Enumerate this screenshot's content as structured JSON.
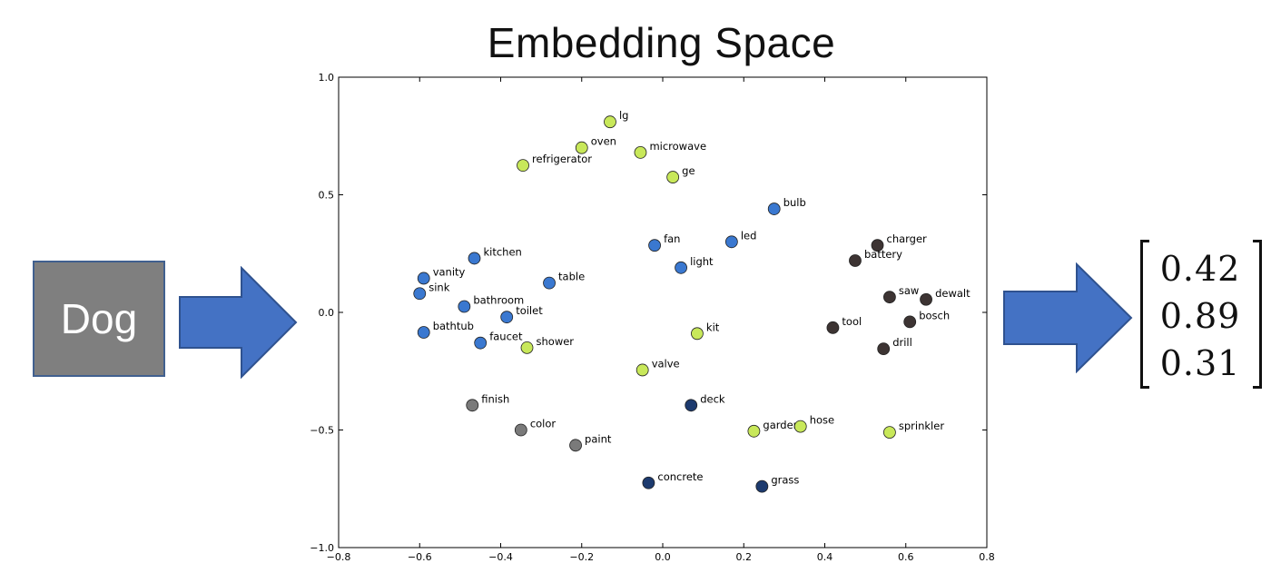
{
  "title": "Embedding Space",
  "input": {
    "label": "Dog"
  },
  "vector": {
    "values": [
      "0.42",
      "0.89",
      "0.31"
    ]
  },
  "colors": {
    "box_fill": "#7f7f7f",
    "box_border": "#41608f",
    "arrow": "#4472c4",
    "arrow_border": "#2f528f"
  },
  "chart_data": {
    "type": "scatter",
    "title": "",
    "xlabel": "",
    "ylabel": "",
    "xlim": [
      -0.8,
      0.8
    ],
    "ylim": [
      -1.0,
      1.0
    ],
    "xticks": [
      "−0.8",
      "−0.6",
      "−0.4",
      "−0.2",
      "0.0",
      "0.2",
      "0.4",
      "0.6",
      "0.8"
    ],
    "xtick_values": [
      -0.8,
      -0.6,
      -0.4,
      -0.2,
      0.0,
      0.2,
      0.4,
      0.6,
      0.8
    ],
    "yticks": [
      "1.0",
      "0.5",
      "0.0",
      "−0.5",
      "−1.0"
    ],
    "ytick_values": [
      1.0,
      0.5,
      0.0,
      -0.5,
      -1.0
    ],
    "grid": false,
    "points": [
      {
        "label": "lg",
        "x": -0.13,
        "y": 0.81,
        "color": "#c8e85a"
      },
      {
        "label": "oven",
        "x": -0.2,
        "y": 0.7,
        "color": "#c8e85a"
      },
      {
        "label": "microwave",
        "x": -0.055,
        "y": 0.68,
        "color": "#c8e85a"
      },
      {
        "label": "refrigerator",
        "x": -0.345,
        "y": 0.625,
        "color": "#c8e85a"
      },
      {
        "label": "ge",
        "x": 0.025,
        "y": 0.575,
        "color": "#c8e85a"
      },
      {
        "label": "bulb",
        "x": 0.275,
        "y": 0.44,
        "color": "#3a78d0"
      },
      {
        "label": "fan",
        "x": -0.02,
        "y": 0.285,
        "color": "#3a78d0"
      },
      {
        "label": "led",
        "x": 0.17,
        "y": 0.3,
        "color": "#3a78d0"
      },
      {
        "label": "light",
        "x": 0.045,
        "y": 0.19,
        "color": "#3a78d0"
      },
      {
        "label": "kitchen",
        "x": -0.465,
        "y": 0.23,
        "color": "#3a78d0"
      },
      {
        "label": "vanity",
        "x": -0.59,
        "y": 0.145,
        "color": "#3a78d0"
      },
      {
        "label": "sink",
        "x": -0.6,
        "y": 0.08,
        "color": "#3a78d0"
      },
      {
        "label": "table",
        "x": -0.28,
        "y": 0.125,
        "color": "#3a78d0"
      },
      {
        "label": "bathroom",
        "x": -0.49,
        "y": 0.025,
        "color": "#3a78d0"
      },
      {
        "label": "toilet",
        "x": -0.385,
        "y": -0.02,
        "color": "#3a78d0"
      },
      {
        "label": "bathtub",
        "x": -0.59,
        "y": -0.085,
        "color": "#3a78d0"
      },
      {
        "label": "faucet",
        "x": -0.45,
        "y": -0.13,
        "color": "#3a78d0"
      },
      {
        "label": "shower",
        "x": -0.335,
        "y": -0.15,
        "color": "#c8e85a"
      },
      {
        "label": "kit",
        "x": 0.085,
        "y": -0.09,
        "color": "#c8e85a"
      },
      {
        "label": "valve",
        "x": -0.05,
        "y": -0.245,
        "color": "#c8e85a"
      },
      {
        "label": "charger",
        "x": 0.53,
        "y": 0.285,
        "color": "#3d3433"
      },
      {
        "label": "battery",
        "x": 0.475,
        "y": 0.22,
        "color": "#3d3433"
      },
      {
        "label": "saw",
        "x": 0.56,
        "y": 0.065,
        "color": "#3d3433"
      },
      {
        "label": "dewalt",
        "x": 0.65,
        "y": 0.055,
        "color": "#3d3433"
      },
      {
        "label": "tool",
        "x": 0.42,
        "y": -0.065,
        "color": "#3d3433"
      },
      {
        "label": "bosch",
        "x": 0.61,
        "y": -0.04,
        "color": "#3d3433"
      },
      {
        "label": "drill",
        "x": 0.545,
        "y": -0.155,
        "color": "#3d3433"
      },
      {
        "label": "finish",
        "x": -0.47,
        "y": -0.395,
        "color": "#7a7a7a"
      },
      {
        "label": "color",
        "x": -0.35,
        "y": -0.5,
        "color": "#7a7a7a"
      },
      {
        "label": "paint",
        "x": -0.215,
        "y": -0.565,
        "color": "#7a7a7a"
      },
      {
        "label": "deck",
        "x": 0.07,
        "y": -0.395,
        "color": "#1c3a6e"
      },
      {
        "label": "garden",
        "x": 0.225,
        "y": -0.505,
        "color": "#c8e85a"
      },
      {
        "label": "hose",
        "x": 0.34,
        "y": -0.485,
        "color": "#c8e85a"
      },
      {
        "label": "sprinkler",
        "x": 0.56,
        "y": -0.51,
        "color": "#c8e85a"
      },
      {
        "label": "concrete",
        "x": -0.035,
        "y": -0.725,
        "color": "#1c3a6e"
      },
      {
        "label": "grass",
        "x": 0.245,
        "y": -0.74,
        "color": "#1c3a6e"
      }
    ]
  }
}
